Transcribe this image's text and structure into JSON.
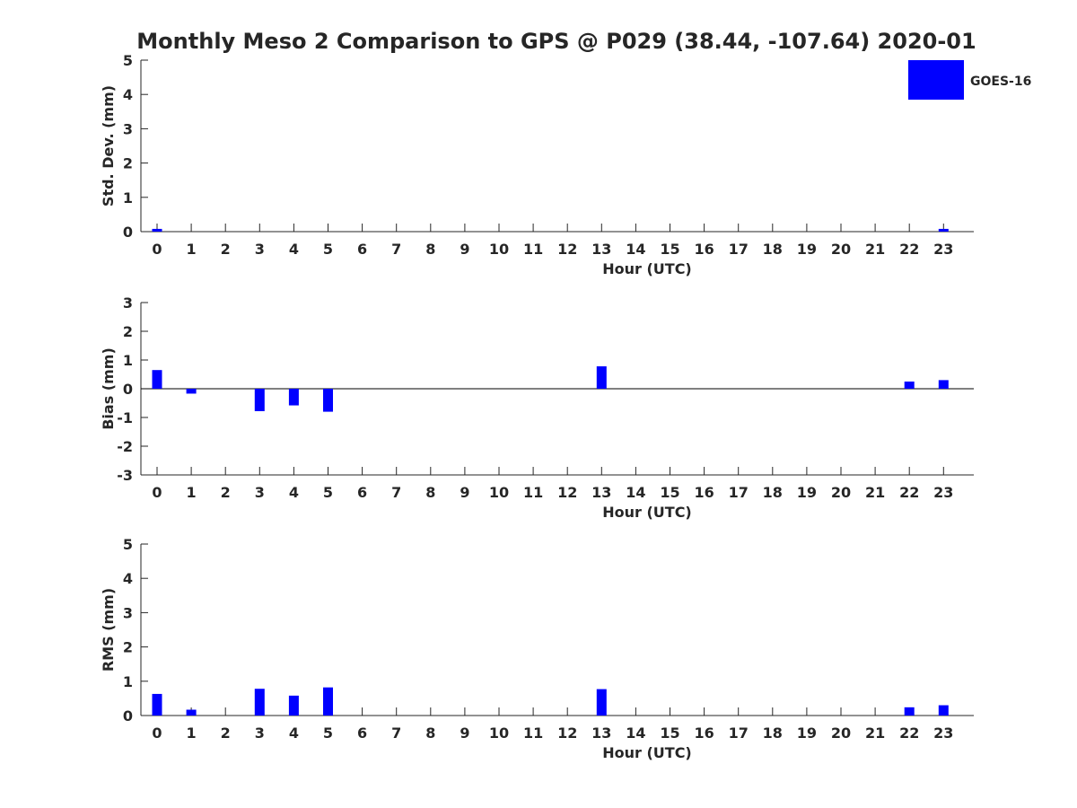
{
  "title": "Monthly Meso 2 Comparison to GPS @ P029 (38.44, -107.64) 2020-01",
  "legend": {
    "label": "GOES-16",
    "color": "#0000FF",
    "position": "top-right"
  },
  "colors": {
    "bar": "#0000FF",
    "axis": "#262626",
    "background": "#FFFFFF"
  },
  "chart_data": [
    {
      "type": "bar",
      "xlabel": "Hour (UTC)",
      "ylabel": "Std. Dev. (mm)",
      "ylim": [
        0,
        5
      ],
      "yticks": [
        0,
        1,
        2,
        3,
        4,
        5
      ],
      "categories": [
        "0",
        "1",
        "2",
        "3",
        "4",
        "5",
        "6",
        "7",
        "8",
        "9",
        "10",
        "11",
        "12",
        "13",
        "14",
        "15",
        "16",
        "17",
        "18",
        "19",
        "20",
        "21",
        "22",
        "23"
      ],
      "series": [
        {
          "name": "GOES-16",
          "values": [
            0.08,
            0,
            0,
            0,
            0,
            0,
            0,
            0,
            0,
            0,
            0,
            0,
            0,
            0,
            0,
            0,
            0,
            0,
            0,
            0,
            0,
            0,
            0,
            0.08
          ]
        }
      ],
      "grid": false
    },
    {
      "type": "bar",
      "xlabel": "Hour (UTC)",
      "ylabel": "Bias (mm)",
      "ylim": [
        -3,
        3
      ],
      "yticks": [
        -3,
        -2,
        -1,
        0,
        1,
        2,
        3
      ],
      "categories": [
        "0",
        "1",
        "2",
        "3",
        "4",
        "5",
        "6",
        "7",
        "8",
        "9",
        "10",
        "11",
        "12",
        "13",
        "14",
        "15",
        "16",
        "17",
        "18",
        "19",
        "20",
        "21",
        "22",
        "23"
      ],
      "series": [
        {
          "name": "GOES-16",
          "values": [
            0.65,
            -0.17,
            0,
            -0.78,
            -0.58,
            -0.8,
            0,
            0,
            0,
            0,
            0,
            0,
            0,
            0.78,
            0,
            0,
            0,
            0,
            0,
            0,
            0,
            0,
            0.25,
            0.3
          ]
        }
      ],
      "zero_line": true,
      "grid": false
    },
    {
      "type": "bar",
      "xlabel": "Hour (UTC)",
      "ylabel": "RMS (mm)",
      "ylim": [
        0,
        5
      ],
      "yticks": [
        0,
        1,
        2,
        3,
        4,
        5
      ],
      "categories": [
        "0",
        "1",
        "2",
        "3",
        "4",
        "5",
        "6",
        "7",
        "8",
        "9",
        "10",
        "11",
        "12",
        "13",
        "14",
        "15",
        "16",
        "17",
        "18",
        "19",
        "20",
        "21",
        "22",
        "23"
      ],
      "series": [
        {
          "name": "GOES-16",
          "values": [
            0.63,
            0.17,
            0,
            0.78,
            0.58,
            0.82,
            0,
            0,
            0,
            0,
            0,
            0,
            0,
            0.77,
            0,
            0,
            0,
            0,
            0,
            0,
            0,
            0,
            0.24,
            0.3
          ]
        }
      ],
      "grid": false
    }
  ]
}
